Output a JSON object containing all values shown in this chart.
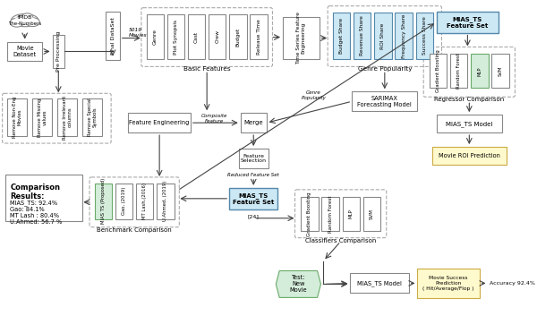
{
  "bg_color": "#ffffff",
  "figsize": [
    6.0,
    3.53
  ],
  "dpi": 100,
  "cloud_text": [
    "IMDB",
    "The-Numbers"
  ],
  "movie_dataset": "Movie\nDataset",
  "pre_processing": "Pre Processing",
  "final_dataset": "Final DataSet",
  "movies_label": "5019\nMovies",
  "basic_features": [
    "Genre",
    "Plot Synopsis",
    "Cast",
    "Crew",
    "Budget",
    "Release Time"
  ],
  "basic_features_label": "Basic Features",
  "ts_fe_label": "Time Series Feature\nEngineering",
  "genre_pop_feats": [
    "Budget Share",
    "Revenue Share",
    "ROI Share",
    "Frequency Share",
    "Success Share"
  ],
  "genre_pop_label": "Genre Popularity",
  "sarimax_label": "SARIMAX\nForecasting Model",
  "genre_pop_arrow_label": "Genre\nPopularity",
  "fe_label": "Feature Engineering",
  "composite_label": "Composite\nFeature",
  "merge_label": "Merge",
  "fs_label": "Feature\nSelection",
  "reduced_label": "Reduced Feature Set",
  "mias_ts_fs_label": "MIAS_TS\nFeature Set",
  "ref24_label": "[24]",
  "classifiers": [
    "Gradient Boosting",
    "Random Forest",
    "MLP",
    "SVM"
  ],
  "classifiers_label": "Classifiers Comparison",
  "benchmark": [
    "MIAS TS (Proposed)",
    "Gao, (2019)",
    "MT Lash,(2016)",
    "U.Ahmed, (2019)"
  ],
  "benchmark_label": "Benchmark Comparison",
  "comparison_title": "Comparison\nResults:",
  "comparison_text": "MIAS_TS: 92.4%\nGao: 84.1%\nMT Lash : 80.4%\nU.Ahmed: 56.7 %",
  "pp_steps": [
    "Remove Non-Eng\nMovies",
    "Remove Missing\nvalues",
    "Remove Irrelevant\ncolumns",
    "Remove Special\nSymbols"
  ],
  "mias_ts_right_label": "MIAS_TS\nFeature Set",
  "reg_methods": [
    "Gradient Boosting",
    "Random Forest",
    "MLP",
    "SVM"
  ],
  "reg_label": "Regressor Comparison",
  "mias_model_right": "MIAS_TS Model",
  "roi_label": "Movie ROI Prediction",
  "test_movie_label": "Test:\nNew\nMovie",
  "mias_model_bottom": "MIAS_TS Model",
  "msp_label": "Movie Success\nPrediction\n( Hit/Average/Flop )",
  "accuracy_label": "Accuracy 92.4%",
  "color_blue_fc": "#cce8f5",
  "color_blue_ec": "#5588aa",
  "color_green_fc": "#d4edda",
  "color_green_ec": "#6aaa6a",
  "color_yellow_fc": "#fffacd",
  "color_yellow_ec": "#ccaa44",
  "color_box_ec": "#888888",
  "color_box_fc": "#ffffff"
}
